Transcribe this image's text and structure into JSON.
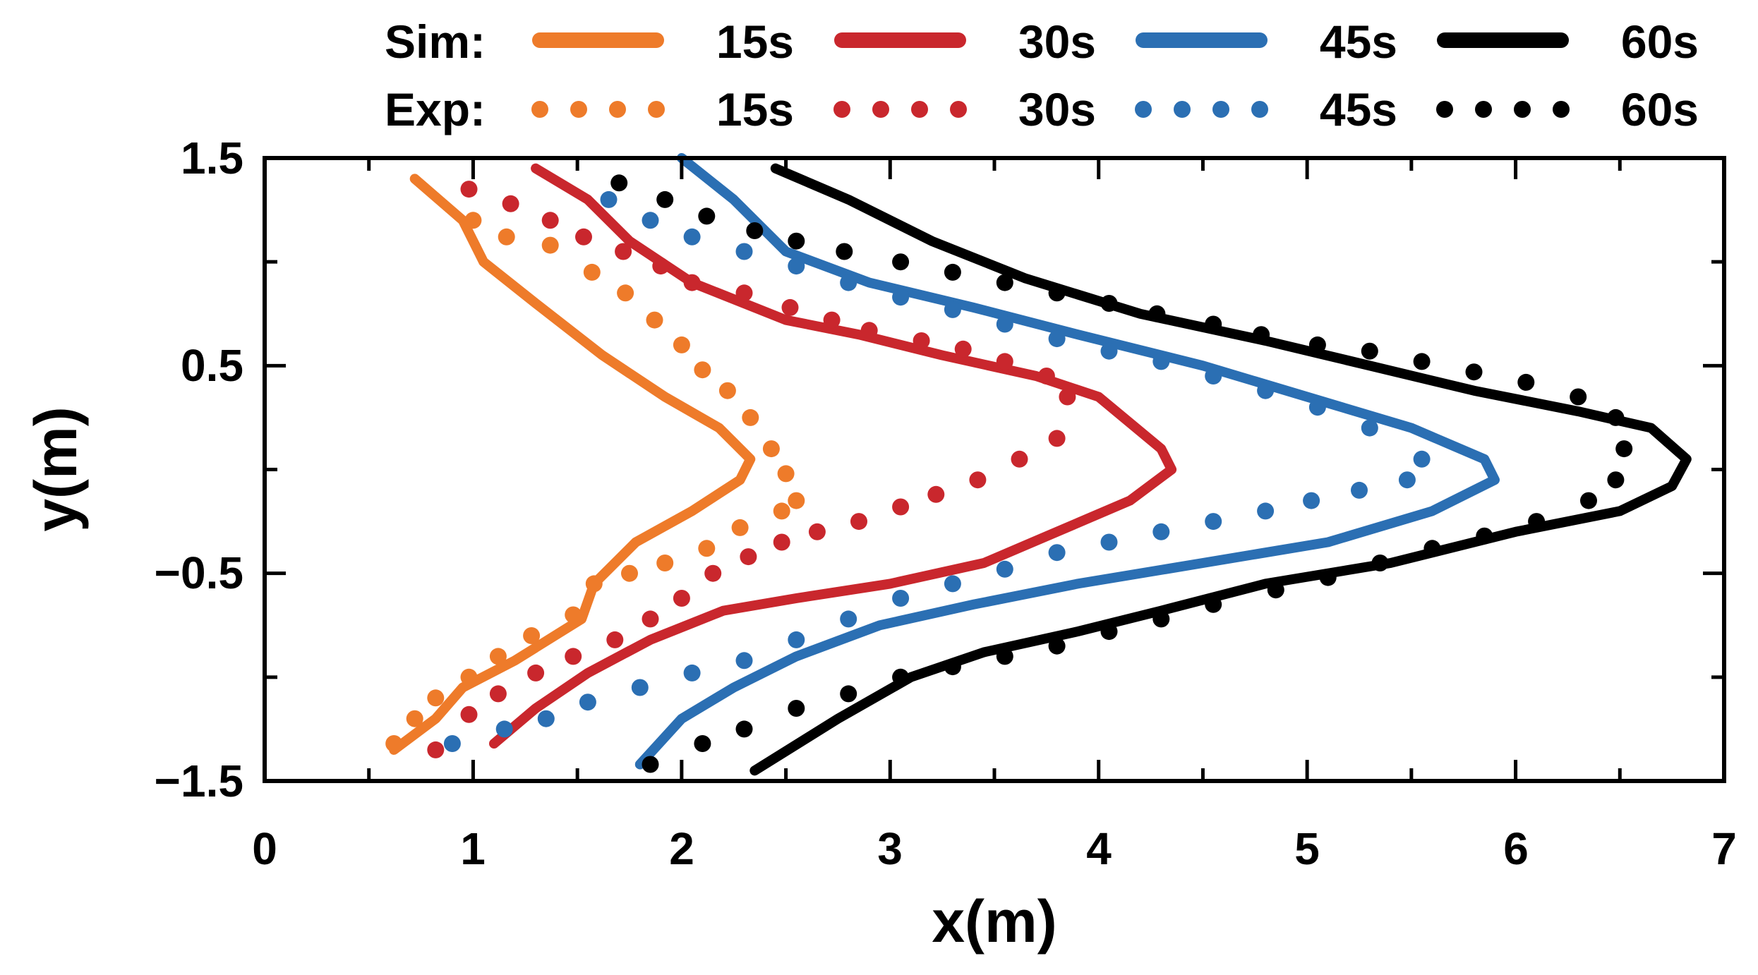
{
  "chart_data": {
    "type": "line",
    "xlabel": "x(m)",
    "ylabel": "y(m)",
    "xlim": [
      0,
      7
    ],
    "ylim": [
      -1.5,
      1.5
    ],
    "x_ticks": [
      "0",
      "1",
      "2",
      "3",
      "4",
      "5",
      "6",
      "7"
    ],
    "y_ticks": [
      "1.5",
      "0.5",
      "−0.5",
      "−1.5"
    ],
    "grid": false,
    "legend": {
      "placement": "top",
      "rows": [
        {
          "label": "Sim:",
          "style": "solid"
        },
        {
          "label": "Exp:",
          "style": "dotted"
        }
      ],
      "entries": [
        "15s",
        "30s",
        "45s",
        "60s"
      ]
    },
    "series": [
      {
        "name": "Sim 15s",
        "group": "Sim",
        "time": "15s",
        "style": "solid",
        "color": "#ee7b2a",
        "points": [
          [
            0.72,
            1.4
          ],
          [
            0.95,
            1.2
          ],
          [
            1.05,
            1.0
          ],
          [
            1.3,
            0.8
          ],
          [
            1.62,
            0.55
          ],
          [
            1.92,
            0.35
          ],
          [
            2.18,
            0.2
          ],
          [
            2.33,
            0.05
          ],
          [
            2.28,
            -0.05
          ],
          [
            2.05,
            -0.2
          ],
          [
            1.78,
            -0.35
          ],
          [
            1.58,
            -0.55
          ],
          [
            1.52,
            -0.72
          ],
          [
            1.2,
            -0.92
          ],
          [
            0.95,
            -1.05
          ],
          [
            0.82,
            -1.2
          ],
          [
            0.62,
            -1.35
          ]
        ]
      },
      {
        "name": "Exp 15s",
        "group": "Exp",
        "time": "15s",
        "style": "dotted",
        "color": "#ee7b2a",
        "points": [
          [
            1.0,
            1.2
          ],
          [
            1.16,
            1.12
          ],
          [
            1.37,
            1.08
          ],
          [
            1.57,
            0.95
          ],
          [
            1.73,
            0.85
          ],
          [
            1.87,
            0.72
          ],
          [
            2.0,
            0.6
          ],
          [
            2.1,
            0.48
          ],
          [
            2.22,
            0.38
          ],
          [
            2.33,
            0.25
          ],
          [
            2.43,
            0.1
          ],
          [
            2.5,
            -0.02
          ],
          [
            2.55,
            -0.15
          ],
          [
            2.48,
            -0.2
          ],
          [
            2.28,
            -0.28
          ],
          [
            2.12,
            -0.38
          ],
          [
            1.92,
            -0.45
          ],
          [
            1.75,
            -0.5
          ],
          [
            1.58,
            -0.55
          ],
          [
            1.48,
            -0.7
          ],
          [
            1.28,
            -0.8
          ],
          [
            1.12,
            -0.9
          ],
          [
            0.98,
            -1.0
          ],
          [
            0.82,
            -1.1
          ],
          [
            0.72,
            -1.2
          ],
          [
            0.62,
            -1.32
          ]
        ]
      },
      {
        "name": "Sim 30s",
        "group": "Sim",
        "time": "30s",
        "style": "solid",
        "color": "#c9272d",
        "points": [
          [
            1.3,
            1.45
          ],
          [
            1.55,
            1.3
          ],
          [
            1.75,
            1.1
          ],
          [
            2.05,
            0.9
          ],
          [
            2.5,
            0.72
          ],
          [
            2.85,
            0.65
          ],
          [
            3.25,
            0.55
          ],
          [
            3.7,
            0.45
          ],
          [
            4.0,
            0.35
          ],
          [
            4.3,
            0.1
          ],
          [
            4.35,
            0.0
          ],
          [
            4.15,
            -0.15
          ],
          [
            3.8,
            -0.3
          ],
          [
            3.45,
            -0.45
          ],
          [
            3.0,
            -0.55
          ],
          [
            2.55,
            -0.62
          ],
          [
            2.2,
            -0.68
          ],
          [
            1.85,
            -0.82
          ],
          [
            1.55,
            -0.98
          ],
          [
            1.3,
            -1.15
          ],
          [
            1.1,
            -1.32
          ]
        ]
      },
      {
        "name": "Exp 30s",
        "group": "Exp",
        "time": "30s",
        "style": "dotted",
        "color": "#c9272d",
        "points": [
          [
            0.98,
            1.35
          ],
          [
            1.18,
            1.28
          ],
          [
            1.37,
            1.2
          ],
          [
            1.53,
            1.12
          ],
          [
            1.72,
            1.05
          ],
          [
            1.9,
            0.98
          ],
          [
            2.05,
            0.9
          ],
          [
            2.3,
            0.85
          ],
          [
            2.52,
            0.78
          ],
          [
            2.72,
            0.72
          ],
          [
            2.9,
            0.67
          ],
          [
            3.15,
            0.62
          ],
          [
            3.35,
            0.58
          ],
          [
            3.55,
            0.52
          ],
          [
            3.75,
            0.45
          ],
          [
            3.85,
            0.35
          ],
          [
            3.8,
            0.15
          ],
          [
            3.62,
            0.05
          ],
          [
            3.42,
            -0.05
          ],
          [
            3.22,
            -0.12
          ],
          [
            3.05,
            -0.18
          ],
          [
            2.85,
            -0.25
          ],
          [
            2.65,
            -0.3
          ],
          [
            2.48,
            -0.35
          ],
          [
            2.32,
            -0.42
          ],
          [
            2.15,
            -0.5
          ],
          [
            2.0,
            -0.62
          ],
          [
            1.85,
            -0.72
          ],
          [
            1.68,
            -0.82
          ],
          [
            1.48,
            -0.9
          ],
          [
            1.3,
            -0.98
          ],
          [
            1.12,
            -1.08
          ],
          [
            0.98,
            -1.18
          ],
          [
            0.82,
            -1.35
          ]
        ]
      },
      {
        "name": "Sim 45s",
        "group": "Sim",
        "time": "45s",
        "style": "solid",
        "color": "#2b6fb3",
        "points": [
          [
            2.0,
            1.5
          ],
          [
            2.25,
            1.3
          ],
          [
            2.5,
            1.05
          ],
          [
            2.9,
            0.9
          ],
          [
            3.4,
            0.78
          ],
          [
            3.9,
            0.65
          ],
          [
            4.5,
            0.5
          ],
          [
            5.0,
            0.35
          ],
          [
            5.5,
            0.2
          ],
          [
            5.85,
            0.05
          ],
          [
            5.9,
            -0.05
          ],
          [
            5.6,
            -0.2
          ],
          [
            5.1,
            -0.35
          ],
          [
            4.5,
            -0.45
          ],
          [
            3.9,
            -0.55
          ],
          [
            3.4,
            -0.65
          ],
          [
            2.95,
            -0.75
          ],
          [
            2.55,
            -0.9
          ],
          [
            2.25,
            -1.05
          ],
          [
            2.0,
            -1.2
          ],
          [
            1.8,
            -1.42
          ]
        ]
      },
      {
        "name": "Exp 45s",
        "group": "Exp",
        "time": "45s",
        "style": "dotted",
        "color": "#2b6fb3",
        "points": [
          [
            1.65,
            1.3
          ],
          [
            1.85,
            1.2
          ],
          [
            2.05,
            1.12
          ],
          [
            2.3,
            1.05
          ],
          [
            2.55,
            0.98
          ],
          [
            2.8,
            0.9
          ],
          [
            3.05,
            0.83
          ],
          [
            3.3,
            0.77
          ],
          [
            3.55,
            0.7
          ],
          [
            3.8,
            0.63
          ],
          [
            4.05,
            0.57
          ],
          [
            4.3,
            0.52
          ],
          [
            4.55,
            0.45
          ],
          [
            4.8,
            0.38
          ],
          [
            5.05,
            0.3
          ],
          [
            5.3,
            0.2
          ],
          [
            5.55,
            0.05
          ],
          [
            5.48,
            -0.05
          ],
          [
            5.25,
            -0.1
          ],
          [
            5.02,
            -0.15
          ],
          [
            4.8,
            -0.2
          ],
          [
            4.55,
            -0.25
          ],
          [
            4.3,
            -0.3
          ],
          [
            4.05,
            -0.35
          ],
          [
            3.8,
            -0.4
          ],
          [
            3.55,
            -0.48
          ],
          [
            3.3,
            -0.55
          ],
          [
            3.05,
            -0.62
          ],
          [
            2.8,
            -0.72
          ],
          [
            2.55,
            -0.82
          ],
          [
            2.3,
            -0.92
          ],
          [
            2.05,
            -0.98
          ],
          [
            1.8,
            -1.05
          ],
          [
            1.55,
            -1.12
          ],
          [
            1.35,
            -1.2
          ],
          [
            1.15,
            -1.25
          ],
          [
            0.9,
            -1.32
          ]
        ]
      },
      {
        "name": "Sim 60s",
        "group": "Sim",
        "time": "60s",
        "style": "solid",
        "color": "#000000",
        "points": [
          [
            2.45,
            1.45
          ],
          [
            2.8,
            1.3
          ],
          [
            3.2,
            1.1
          ],
          [
            3.65,
            0.92
          ],
          [
            4.2,
            0.75
          ],
          [
            4.8,
            0.62
          ],
          [
            5.3,
            0.5
          ],
          [
            5.8,
            0.38
          ],
          [
            6.3,
            0.28
          ],
          [
            6.65,
            0.2
          ],
          [
            6.82,
            0.05
          ],
          [
            6.75,
            -0.08
          ],
          [
            6.5,
            -0.2
          ],
          [
            6.0,
            -0.3
          ],
          [
            5.4,
            -0.45
          ],
          [
            4.8,
            -0.55
          ],
          [
            4.3,
            -0.68
          ],
          [
            3.9,
            -0.78
          ],
          [
            3.45,
            -0.88
          ],
          [
            3.1,
            -1.0
          ],
          [
            2.75,
            -1.2
          ],
          [
            2.35,
            -1.45
          ]
        ]
      },
      {
        "name": "Exp 60s",
        "group": "Exp",
        "time": "60s",
        "style": "dotted",
        "color": "#000000",
        "points": [
          [
            1.7,
            1.38
          ],
          [
            1.92,
            1.3
          ],
          [
            2.12,
            1.22
          ],
          [
            2.35,
            1.15
          ],
          [
            2.55,
            1.1
          ],
          [
            2.78,
            1.05
          ],
          [
            3.05,
            1.0
          ],
          [
            3.3,
            0.95
          ],
          [
            3.55,
            0.9
          ],
          [
            3.8,
            0.85
          ],
          [
            4.05,
            0.8
          ],
          [
            4.28,
            0.75
          ],
          [
            4.55,
            0.7
          ],
          [
            4.78,
            0.65
          ],
          [
            5.05,
            0.6
          ],
          [
            5.3,
            0.57
          ],
          [
            5.55,
            0.52
          ],
          [
            5.8,
            0.47
          ],
          [
            6.05,
            0.42
          ],
          [
            6.3,
            0.35
          ],
          [
            6.48,
            0.25
          ],
          [
            6.52,
            0.1
          ],
          [
            6.48,
            -0.05
          ],
          [
            6.35,
            -0.15
          ],
          [
            6.1,
            -0.25
          ],
          [
            5.85,
            -0.32
          ],
          [
            5.6,
            -0.38
          ],
          [
            5.35,
            -0.45
          ],
          [
            5.1,
            -0.52
          ],
          [
            4.85,
            -0.58
          ],
          [
            4.55,
            -0.65
          ],
          [
            4.3,
            -0.72
          ],
          [
            4.05,
            -0.78
          ],
          [
            3.8,
            -0.85
          ],
          [
            3.55,
            -0.9
          ],
          [
            3.3,
            -0.95
          ],
          [
            3.05,
            -1.0
          ],
          [
            2.8,
            -1.08
          ],
          [
            2.55,
            -1.15
          ],
          [
            2.3,
            -1.25
          ],
          [
            2.1,
            -1.32
          ],
          [
            1.85,
            -1.42
          ]
        ]
      }
    ]
  }
}
